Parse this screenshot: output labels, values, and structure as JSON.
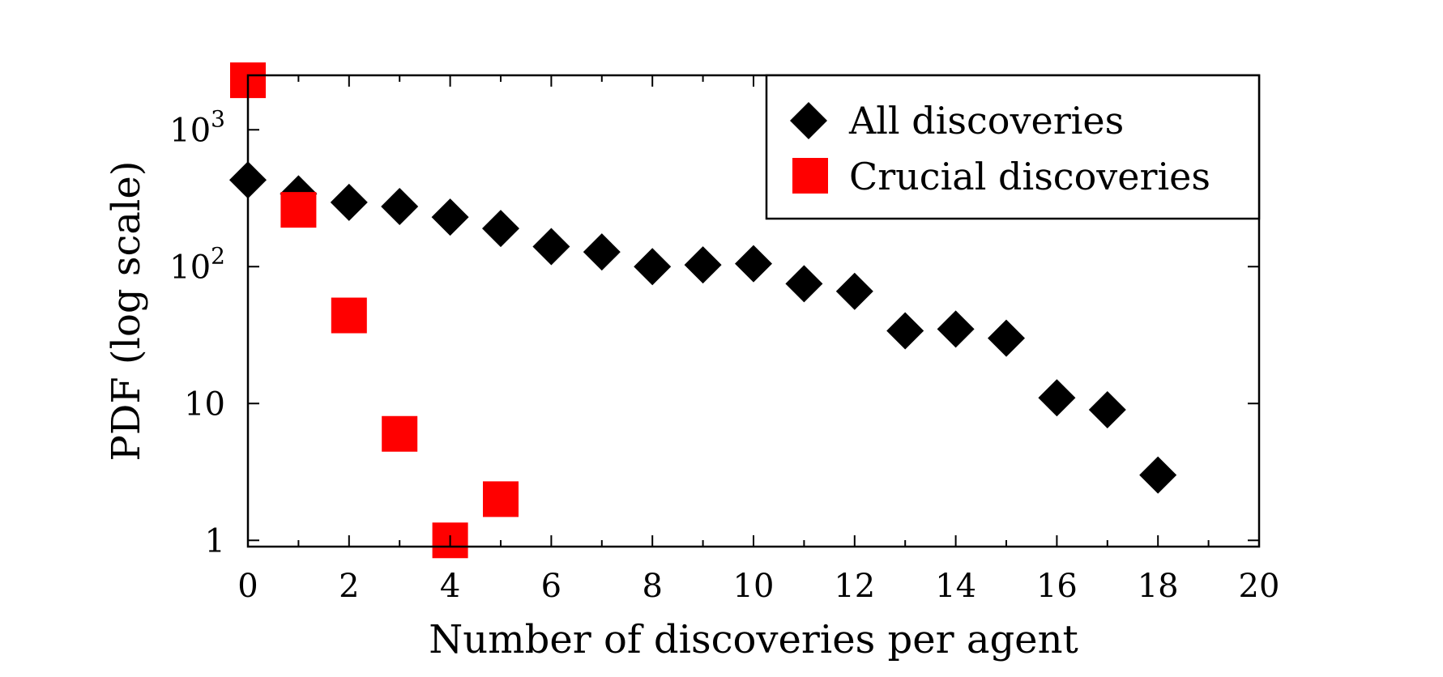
{
  "chart_data": {
    "type": "scatter",
    "xlabel": "Number of discoveries per agent",
    "ylabel": "PDF (log scale)",
    "xlim": [
      0,
      20
    ],
    "ylim": [
      0.9,
      2500
    ],
    "yscale": "log",
    "grid": false,
    "legend_position": "top-right",
    "x_ticks": [
      0,
      2,
      4,
      6,
      8,
      10,
      12,
      14,
      16,
      18,
      20
    ],
    "x_tick_labels": [
      "0",
      "2",
      "4",
      "6",
      "8",
      "10",
      "12",
      "14",
      "16",
      "18",
      "20"
    ],
    "y_ticks": [
      1,
      10,
      100,
      1000
    ],
    "y_tick_labels": [
      {
        "base": "1",
        "exp": ""
      },
      {
        "base": "10",
        "exp": ""
      },
      {
        "base": "10",
        "exp": "2"
      },
      {
        "base": "10",
        "exp": "3"
      }
    ],
    "series": [
      {
        "name": "All discoveries",
        "marker": "diamond",
        "color": "#000000",
        "x": [
          0,
          1,
          2,
          3,
          4,
          5,
          6,
          7,
          8,
          9,
          10,
          11,
          12,
          13,
          14,
          15,
          16,
          17,
          18
        ],
        "y": [
          430,
          340,
          295,
          275,
          230,
          190,
          140,
          128,
          100,
          103,
          105,
          75,
          66,
          34,
          35,
          30,
          11,
          9,
          3
        ]
      },
      {
        "name": "Crucial discoveries",
        "marker": "square",
        "color": "#ff0000",
        "x": [
          0,
          1,
          2,
          3,
          4,
          5
        ],
        "y": [
          2300,
          260,
          44,
          6,
          1,
          2
        ]
      }
    ]
  }
}
